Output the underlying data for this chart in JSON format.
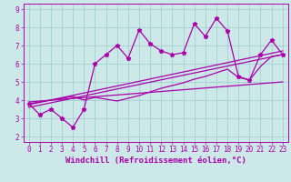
{
  "xlabel": "Windchill (Refroidissement éolien,°C)",
  "bg_color": "#cce8e8",
  "line_color": "#aa00aa",
  "grid_color": "#99cccc",
  "xlim": [
    -0.5,
    23.5
  ],
  "ylim": [
    1.7,
    9.3
  ],
  "xticks": [
    0,
    1,
    2,
    3,
    4,
    5,
    6,
    7,
    8,
    9,
    10,
    11,
    12,
    13,
    14,
    15,
    16,
    17,
    18,
    19,
    20,
    21,
    22,
    23
  ],
  "yticks": [
    2,
    3,
    4,
    5,
    6,
    7,
    8,
    9
  ],
  "series1_x": [
    0,
    1,
    2,
    3,
    4,
    5,
    6,
    7,
    8,
    9,
    10,
    11,
    12,
    13,
    14,
    15,
    16,
    17,
    18,
    19,
    20,
    21,
    22,
    23
  ],
  "series1_y": [
    3.8,
    3.2,
    3.5,
    3.0,
    2.5,
    3.5,
    6.0,
    6.5,
    7.0,
    6.3,
    7.85,
    7.1,
    6.7,
    6.5,
    6.6,
    8.2,
    7.5,
    8.5,
    7.8,
    5.3,
    5.1,
    6.5,
    7.3,
    6.5
  ],
  "series2_x": [
    0,
    4,
    5,
    6,
    7,
    8,
    9,
    10,
    11,
    12,
    13,
    14,
    15,
    16,
    17,
    18,
    19,
    20,
    21,
    22,
    23
  ],
  "series2_y": [
    3.8,
    4.2,
    4.0,
    4.15,
    4.05,
    3.95,
    4.1,
    4.25,
    4.45,
    4.65,
    4.8,
    4.95,
    5.15,
    5.3,
    5.5,
    5.7,
    5.25,
    5.1,
    5.85,
    6.4,
    6.5
  ],
  "series3_x": [
    0,
    23
  ],
  "series3_y": [
    3.6,
    6.5
  ],
  "series4_x": [
    0,
    23
  ],
  "series4_y": [
    3.75,
    6.7
  ],
  "series5_x": [
    0,
    23
  ],
  "series5_y": [
    3.9,
    5.0
  ],
  "linewidth": 0.9,
  "markersize": 3.5,
  "xlabel_fontsize": 6.5,
  "tick_fontsize": 5.5
}
